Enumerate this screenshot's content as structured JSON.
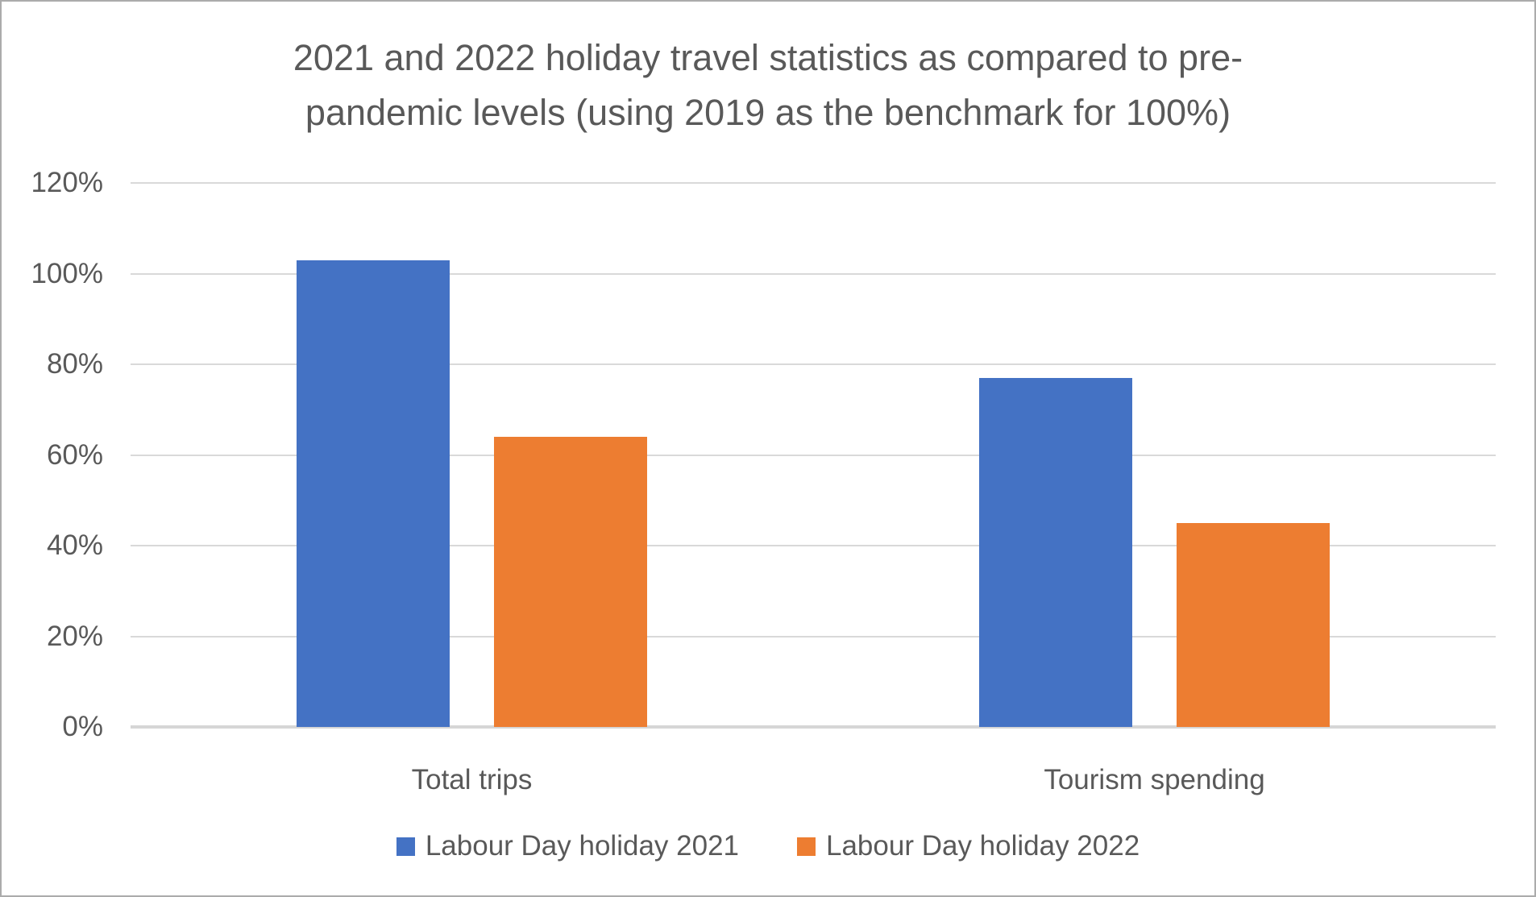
{
  "chart_data": {
    "type": "bar",
    "title": "2021 and 2022 holiday travel statistics as compared to pre-pandemic levels (using 2019 as the benchmark for 100%)",
    "title_lines": [
      "2021 and 2022 holiday travel statistics as compared to pre-",
      "pandemic levels (using 2019 as the benchmark for 100%)"
    ],
    "categories": [
      "Total trips",
      "Tourism spending"
    ],
    "series": [
      {
        "name": "Labour Day holiday 2021",
        "color": "#4472C4",
        "values": [
          103,
          77
        ]
      },
      {
        "name": "Labour Day holiday 2022",
        "color": "#ED7D31",
        "values": [
          64,
          45
        ]
      }
    ],
    "ylabel": "",
    "xlabel": "",
    "ylim": [
      0,
      120
    ],
    "ytick_step": 20,
    "yticks": [
      "0%",
      "20%",
      "40%",
      "60%",
      "80%",
      "100%",
      "120%"
    ],
    "grid": true,
    "legend_position": "bottom",
    "colors": {
      "series_2021": "#4472C4",
      "series_2022": "#ED7D31",
      "text": "#595959",
      "gridline": "#D9D9D9",
      "frame_border": "#ABABAB",
      "background": "#FFFFFF"
    }
  }
}
